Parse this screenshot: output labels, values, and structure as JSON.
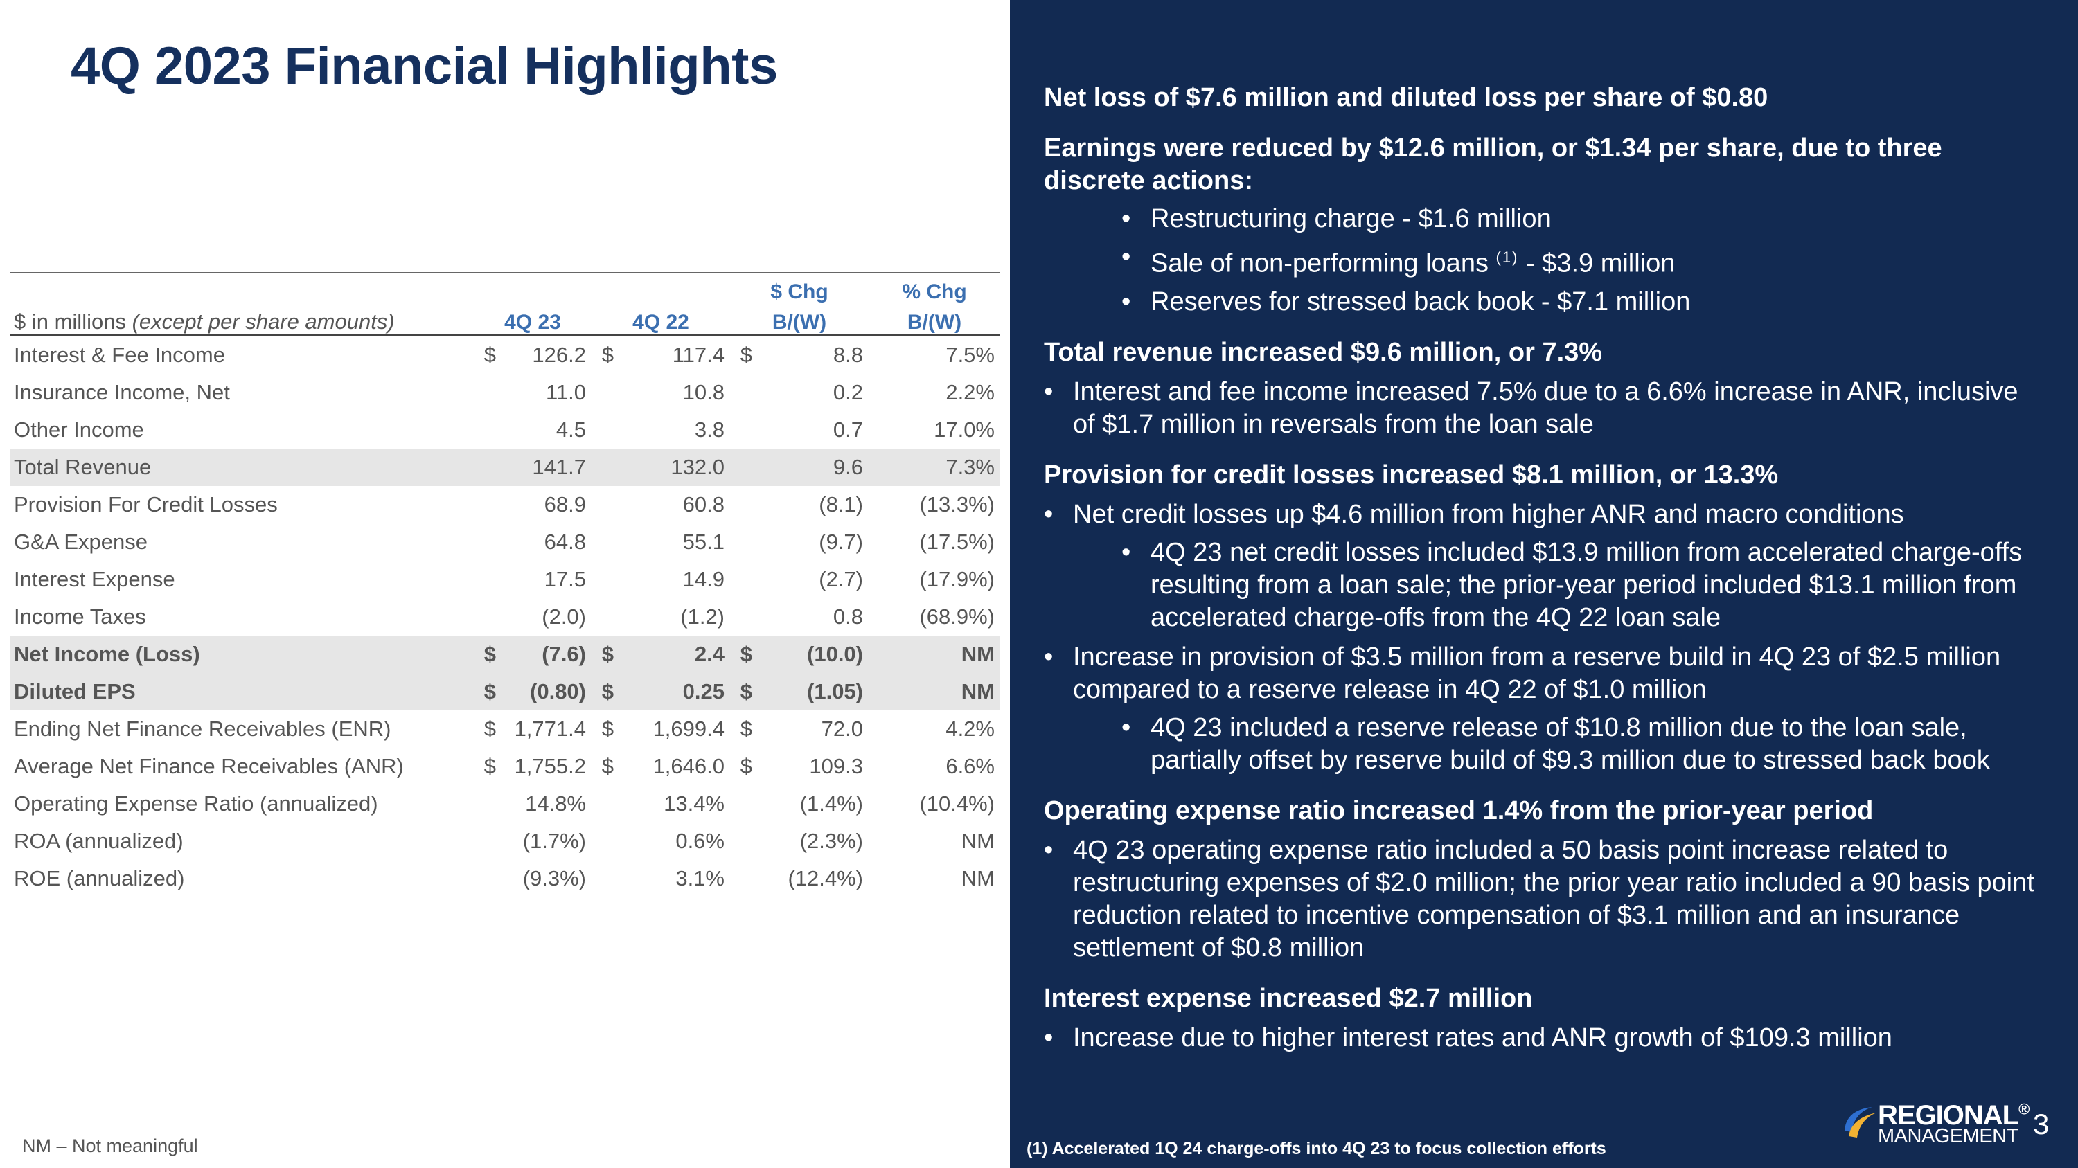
{
  "title": "4Q 2023 Financial Highlights",
  "table": {
    "label_prefix": "$ in millions",
    "label_suffix": "(except per share amounts)",
    "col_q23": "4Q 23",
    "col_q22": "4Q 22",
    "col_chg_top": "$ Chg",
    "col_chg_bottom": "B/(W)",
    "col_pct_top": "% Chg",
    "col_pct_bottom": "B/(W)",
    "rows": [
      {
        "label": "Interest & Fee Income",
        "q23_sign": "$",
        "q23": "126.2",
        "q22_sign": "$",
        "q22": "117.4",
        "chg_sign": "$",
        "chg": "8.8",
        "pct": "7.5%"
      },
      {
        "label": "Insurance Income, Net",
        "q23_sign": "",
        "q23": "11.0",
        "q22_sign": "",
        "q22": "10.8",
        "chg_sign": "",
        "chg": "0.2",
        "pct": "2.2%"
      },
      {
        "label": "Other Income",
        "q23_sign": "",
        "q23": "4.5",
        "q22_sign": "",
        "q22": "3.8",
        "chg_sign": "",
        "chg": "0.7",
        "pct": "17.0%"
      },
      {
        "label": "Total Revenue",
        "q23_sign": "",
        "q23": "141.7",
        "q22_sign": "",
        "q22": "132.0",
        "chg_sign": "",
        "chg": "9.6",
        "pct": "7.3%"
      },
      {
        "label": "Provision For Credit Losses",
        "q23_sign": "",
        "q23": "68.9",
        "q22_sign": "",
        "q22": "60.8",
        "chg_sign": "",
        "chg": "(8.1)",
        "pct": "(13.3%)"
      },
      {
        "label": "G&A Expense",
        "q23_sign": "",
        "q23": "64.8",
        "q22_sign": "",
        "q22": "55.1",
        "chg_sign": "",
        "chg": "(9.7)",
        "pct": "(17.5%)"
      },
      {
        "label": "Interest Expense",
        "q23_sign": "",
        "q23": "17.5",
        "q22_sign": "",
        "q22": "14.9",
        "chg_sign": "",
        "chg": "(2.7)",
        "pct": "(17.9%)"
      },
      {
        "label": "Income Taxes",
        "q23_sign": "",
        "q23": "(2.0)",
        "q22_sign": "",
        "q22": "(1.2)",
        "chg_sign": "",
        "chg": "0.8",
        "pct": "(68.9%)"
      },
      {
        "label": "Net Income (Loss)",
        "q23_sign": "$",
        "q23": "(7.6)",
        "q22_sign": "$",
        "q22": "2.4",
        "chg_sign": "$",
        "chg": "(10.0)",
        "pct": "NM"
      },
      {
        "label": "Diluted EPS",
        "q23_sign": "$",
        "q23": "(0.80)",
        "q22_sign": "$",
        "q22": "0.25",
        "chg_sign": "$",
        "chg": "(1.05)",
        "pct": "NM"
      },
      {
        "label": "Ending Net Finance Receivables (ENR)",
        "q23_sign": "$",
        "q23": "1,771.4",
        "q22_sign": "$",
        "q22": "1,699.4",
        "chg_sign": "$",
        "chg": "72.0",
        "pct": "4.2%"
      },
      {
        "label": "Average Net Finance Receivables (ANR)",
        "q23_sign": "$",
        "q23": "1,755.2",
        "q22_sign": "$",
        "q22": "1,646.0",
        "chg_sign": "$",
        "chg": "109.3",
        "pct": "6.6%"
      },
      {
        "label": "Operating Expense Ratio (annualized)",
        "q23_sign": "",
        "q23": "14.8%",
        "q22_sign": "",
        "q22": "13.4%",
        "chg_sign": "",
        "chg": "(1.4%)",
        "pct": "(10.4%)"
      },
      {
        "label": "ROA (annualized)",
        "q23_sign": "",
        "q23": "(1.7%)",
        "q22_sign": "",
        "q22": "0.6%",
        "chg_sign": "",
        "chg": "(2.3%)",
        "pct": "NM"
      },
      {
        "label": "ROE (annualized)",
        "q23_sign": "",
        "q23": "(9.3%)",
        "q22_sign": "",
        "q22": "3.1%",
        "chg_sign": "",
        "chg": "(12.4%)",
        "pct": "NM"
      }
    ]
  },
  "nm_note": "NM – Not meaningful",
  "panel": {
    "s1_head": "Net loss of $7.6 million and diluted loss per share of $0.80",
    "s2_head": "Earnings were reduced by $12.6 million, or $1.34 per share, due to three discrete actions:",
    "s2_b1": "Restructuring charge - $1.6 million",
    "s2_b2_pre": "Sale of non-performing loans",
    "s2_b2_sup": "(1)",
    "s2_b2_post": "- $3.9 million",
    "s2_b3": "Reserves for stressed back book - $7.1 million",
    "s3_head": "Total revenue increased $9.6 million, or 7.3%",
    "s3_b1": "Interest and fee income increased 7.5% due to a 6.6% increase in ANR, inclusive of $1.7 million in reversals from the loan sale",
    "s4_head": "Provision for credit losses increased $8.1 million, or 13.3%",
    "s4_b1": "Net credit losses up $4.6 million from higher ANR and macro conditions",
    "s4_b1_sub": "4Q 23 net credit losses included $13.9 million from accelerated charge-offs resulting from a loan sale; the prior-year period included $13.1 million from accelerated charge-offs from the 4Q 22 loan sale",
    "s4_b2": "Increase in provision of $3.5 million from a reserve build in 4Q 23 of $2.5 million compared to a reserve release in 4Q 22 of $1.0 million",
    "s4_b2_sub": "4Q 23 included a reserve release of $10.8 million due to the loan sale, partially offset by reserve build of $9.3 million due to stressed back book",
    "s5_head": "Operating expense ratio increased 1.4% from the prior-year period",
    "s5_b1": "4Q 23 operating expense ratio included a 50 basis point increase related to restructuring expenses of $2.0 million; the prior year ratio included a 90 basis point reduction related to incentive compensation of $3.1 million and an insurance settlement of $0.8 million",
    "s6_head": "Interest expense increased $2.7 million",
    "s6_b1": "Increase due to higher interest rates and ANR growth of $109.3 million"
  },
  "footnote": "(1) Accelerated 1Q 24 charge-offs into 4Q 23 to focus collection efforts",
  "logo": {
    "line1": "REGIONAL",
    "line2": "MANAGEMENT",
    "tm": "®"
  },
  "page_number": "3",
  "bullet_char": "•",
  "colors": {
    "navy_panel": "#122a52",
    "title_navy": "#15305e",
    "header_blue": "#3b6fb0",
    "shade": "#e6e6e6"
  }
}
